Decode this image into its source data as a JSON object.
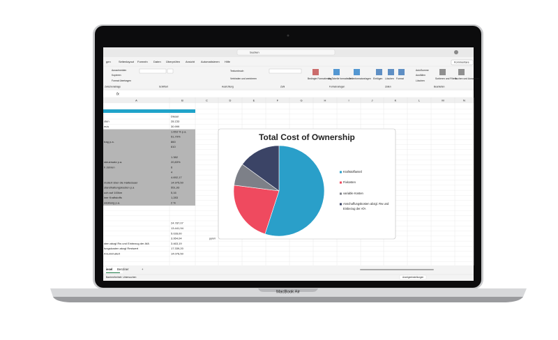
{
  "screen": {
    "search": "Suchen",
    "tabs": [
      "gen",
      "Seitenlayout",
      "Formeln",
      "Daten",
      "Überprüfen",
      "Ansicht",
      "Automatisieren",
      "Hilfe"
    ],
    "comments_button": "Kommentare",
    "ribbon_items": [
      "Ausschneiden",
      "Kopieren",
      "Format übertragen",
      "Source Sans Pro",
      "10",
      "Textumbruch",
      "Verbinden und zentrieren",
      "Standard",
      "Bedingte Formatierung",
      "Als Tabelle formatieren",
      "Zellenformatvorlagen",
      "Einfügen",
      "Löschen",
      "Format",
      "AutoSumme",
      "Ausfüllen",
      "Löschen",
      "Sortieren und Filtern",
      "Suchen und Auswählen"
    ],
    "ribbon_groups": [
      "Zwischenablage",
      "Schriftart",
      "Ausrichtung",
      "Zahl",
      "Formatvorlagen",
      "Zellen",
      "Bearbeiten"
    ],
    "formula_label": "fx",
    "columns": [
      "A",
      "B",
      "C",
      "D",
      "E",
      "F",
      "G",
      "H",
      "I",
      "J",
      "K",
      "L",
      "M",
      "N"
    ],
    "rows": [
      {
        "a": null,
        "b": null
      },
      {
        "a": null,
        "b": "Diesel"
      },
      {
        "a": "sten",
        "b": "28.153"
      },
      {
        "a": "m/a",
        "b": "30.999"
      },
      {
        "a": null,
        "b": "1.653 % p.a."
      },
      {
        "a": null,
        "b": "51,79%"
      },
      {
        "a": "trag p.a.",
        "b": "860"
      },
      {
        "a": null,
        "b": "610"
      },
      {
        "a": null,
        "b": null
      },
      {
        "a": null,
        "b": "1.382"
      },
      {
        "a": "steuersatz p.a.",
        "b": "20,83%"
      },
      {
        "a": "h Jahren",
        "b": "6"
      },
      {
        "a": null,
        "b": "4"
      },
      {
        "a": null,
        "b": "4.692,17"
      },
      {
        "a": "mutiert über die Haltedauer",
        "b": "14.975,50"
      },
      {
        "a": "standhaltungskosten p.a",
        "b": "551,93"
      },
      {
        "a": "uch auf 100km",
        "b": "5,16"
      },
      {
        "a": "iner Kraftstoffs",
        "b": "1,283"
      },
      {
        "a": "wicklung p.a.",
        "b": "2 %"
      },
      {
        "a": null,
        "b": null
      },
      {
        "a": null,
        "b": null
      },
      {
        "a": null,
        "b": null
      },
      {
        "a": null,
        "b": "24.787,07"
      },
      {
        "a": null,
        "b": "13.441,94"
      },
      {
        "a": null,
        "b": "5.028,00"
      },
      {
        "a": null,
        "b": "3.954,04",
        "c": "ppm/l"
      },
      {
        "a": "sten abzgl Rw und Einbezug der AfA",
        "b": "3.463,19"
      },
      {
        "a": "fungskosten abzgl Restwert",
        "b": "17.339,20"
      },
      {
        "a": "A kummuliert",
        "b": "14.076,50"
      }
    ],
    "sheet_tabs": [
      "iesel",
      "Benziner",
      "+"
    ],
    "status": "Barrierefreiheit: Untersuchen",
    "status_right": "Anzeigeeinstellungen"
  },
  "device_label": "MacBook Air",
  "chart_data": {
    "type": "pie",
    "title": "Total Cost of Ownership",
    "categories": [
      "Kraftstoffanteil",
      "Fixkosten",
      "variable Kosten",
      "Anschaffungskosten abzgl. Rw und Einbezug der AfA"
    ],
    "values": [
      55,
      22,
      8,
      15
    ],
    "colors": [
      "#2a9fc9",
      "#ef4a5f",
      "#7d8088",
      "#3b4466"
    ]
  }
}
